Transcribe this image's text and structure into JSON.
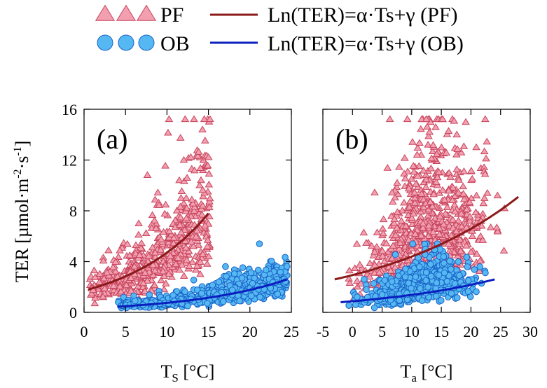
{
  "legend": {
    "marker_pf": "PF",
    "marker_ob": "OB",
    "line_pf": "Ln(TER)=α·Ts+γ (PF)",
    "line_ob": "Ln(TER)=α·Ts+γ (OB)"
  },
  "colors": {
    "pf_fill": "#f2a0b0",
    "pf_edge": "#c8455e",
    "ob_fill": "#55b8f2",
    "ob_edge": "#1a63c8",
    "pf_line": "#8b1a1a",
    "ob_line": "#0a1fbf"
  },
  "chart_data": [
    {
      "type": "scatter",
      "panel_label": "(a)",
      "xlabel": "T_S [°C]",
      "xlabel_main": "T",
      "xlabel_sub": "S",
      "xlabel_unit": " [°C]",
      "ylabel": "TER [µmol·m-2·s-1]",
      "ylabel_main": "TER [µmol·m",
      "ylabel_sup1": "-2",
      "ylabel_mid": "·s",
      "ylabel_sup2": "-1",
      "ylabel_end": "]",
      "xlim": [
        0,
        25
      ],
      "ylim": [
        0,
        16
      ],
      "xticks": [
        0,
        5,
        10,
        15,
        20,
        25
      ],
      "yticks": [
        0,
        4,
        8,
        12,
        16
      ],
      "legend": "top",
      "grid": false,
      "series": [
        {
          "name": "PF",
          "marker": "triangle",
          "count": 560,
          "x_range": [
            0.5,
            15.2
          ],
          "pattern": "TER rises exponentially with Ts, wide scatter; max ~15.5 at Ts≈12.3"
        },
        {
          "name": "OB",
          "marker": "circle",
          "count": 700,
          "x_range": [
            4.0,
            24.5
          ],
          "pattern": "TER clustered 0–4, max ~5.3 at Ts≈20"
        }
      ],
      "fit_lines": [
        {
          "name": "Ln(TER)=α·Ts+γ (PF)",
          "x": [
            0.5,
            15
          ],
          "y": [
            1.8,
            7.8
          ]
        },
        {
          "name": "Ln(TER)=α·Ts+γ (OB)",
          "x": [
            4,
            24.5
          ],
          "y": [
            0.45,
            2.6
          ]
        }
      ]
    },
    {
      "type": "scatter",
      "panel_label": "(b)",
      "xlabel": "T_a [°C]",
      "xlabel_main": "T",
      "xlabel_sub": "a",
      "xlabel_unit": " [°C]",
      "xlim": [
        -5,
        30
      ],
      "ylim": [
        0,
        16
      ],
      "xticks": [
        -5,
        0,
        5,
        10,
        15,
        20,
        25,
        30
      ],
      "yticks": [
        0,
        4,
        8,
        12,
        16
      ],
      "legend": "top",
      "grid": false,
      "series": [
        {
          "name": "PF",
          "marker": "triangle",
          "count": 700,
          "x_range": [
            -3,
            28
          ],
          "pattern": "broad cloud, TER up to ~15.5 at Ta≈17"
        },
        {
          "name": "OB",
          "marker": "circle",
          "count": 750,
          "x_range": [
            -2,
            24
          ],
          "pattern": "TER clustered 0–4, max ~5.5 at Ta≈13"
        }
      ],
      "fit_lines": [
        {
          "name": "Ln(TER)=α·Ts+γ (PF)",
          "x": [
            -3,
            28
          ],
          "y": [
            2.6,
            9.1
          ]
        },
        {
          "name": "Ln(TER)=α·Ts+γ (OB)",
          "x": [
            -2,
            24
          ],
          "y": [
            0.8,
            2.6
          ]
        }
      ]
    }
  ]
}
